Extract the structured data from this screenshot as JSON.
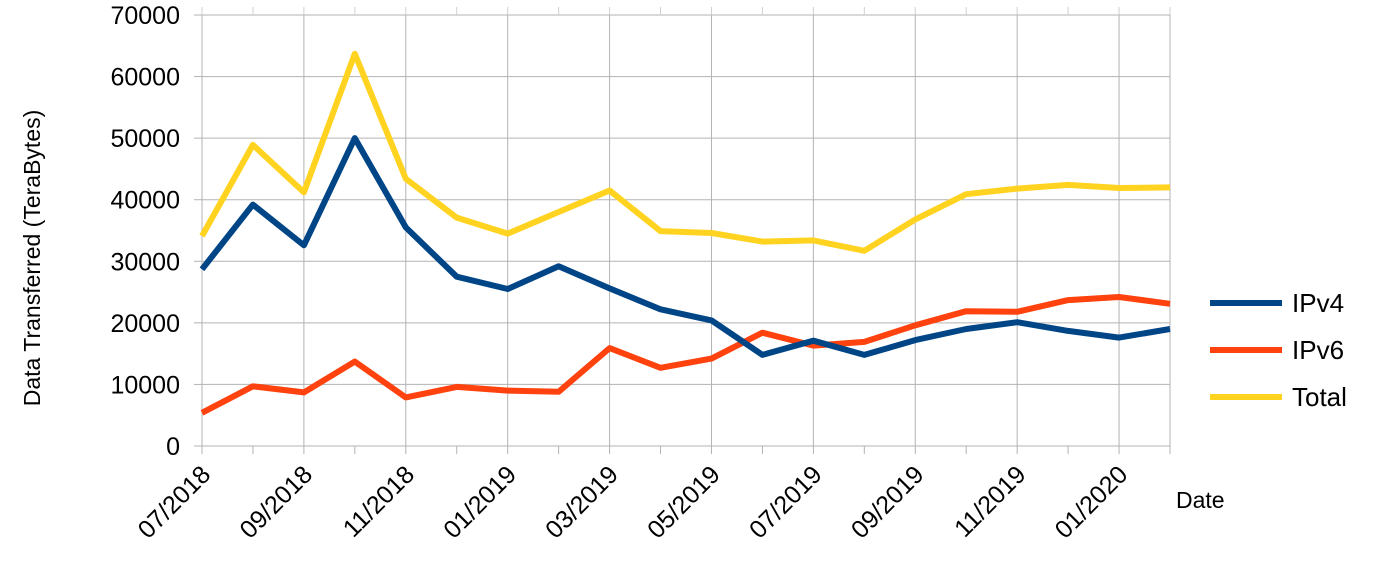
{
  "chart_data": {
    "type": "line",
    "title": "",
    "xlabel": "Date",
    "ylabel": "Data Transferred (TeraBytes)",
    "ylim": [
      0,
      70000
    ],
    "yticks": [
      "0",
      "10000",
      "20000",
      "30000",
      "40000",
      "50000",
      "60000",
      "70000"
    ],
    "x": [
      "07/2018",
      "08/2018",
      "09/2018",
      "10/2018",
      "11/2018",
      "12/2018",
      "01/2019",
      "02/2019",
      "03/2019",
      "04/2019",
      "05/2019",
      "06/2019",
      "07/2019",
      "08/2019",
      "09/2019",
      "10/2019",
      "11/2019",
      "12/2019",
      "01/2020",
      "02/2020"
    ],
    "x_tick_labels": [
      "07/2018",
      "09/2018",
      "11/2018",
      "01/2019",
      "03/2019",
      "05/2019",
      "07/2019",
      "09/2019",
      "11/2019",
      "01/2020"
    ],
    "grid": true,
    "legend_position": "right",
    "series": [
      {
        "name": "IPv4",
        "color": "#004586",
        "values": [
          28700,
          39200,
          32600,
          50000,
          35500,
          27500,
          25500,
          29200,
          25600,
          22200,
          20400,
          14800,
          17100,
          14800,
          17200,
          19000,
          20100,
          18700,
          17600,
          19000
        ]
      },
      {
        "name": "IPv6",
        "color": "#ff420e",
        "values": [
          5400,
          9700,
          8700,
          13700,
          7900,
          9600,
          9000,
          8800,
          15900,
          12700,
          14200,
          18400,
          16300,
          16900,
          19600,
          21900,
          21800,
          23700,
          24200,
          23100
        ]
      },
      {
        "name": "Total",
        "color": "#ffd320",
        "values": [
          34100,
          48900,
          41200,
          63700,
          43400,
          37100,
          34500,
          38000,
          41500,
          34900,
          34600,
          33200,
          33400,
          31700,
          36800,
          40900,
          41800,
          42400,
          41900,
          42000
        ]
      }
    ]
  }
}
